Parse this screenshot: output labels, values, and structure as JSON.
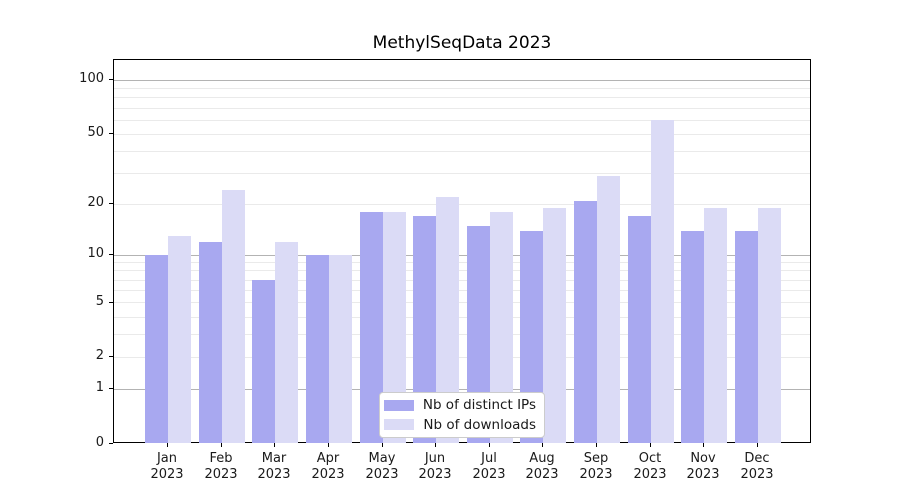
{
  "title": "MethylSeqData 2023",
  "legend": {
    "items": [
      {
        "label": "Nb of distinct IPs",
        "color": "#a8a8f0"
      },
      {
        "label": "Nb of downloads",
        "color": "#dbdbf6"
      }
    ]
  },
  "colors": {
    "bar_distinct_ips": "#a8a8f0",
    "bar_downloads": "#dbdbf6",
    "major_grid": "#b3b3b3",
    "minor_grid": "#eaeaea",
    "axis": "#000000",
    "background": "#ffffff",
    "legend_border": "#cccccc",
    "text": "#1a1a1a"
  },
  "chart_data": {
    "type": "bar",
    "title": "MethylSeqData 2023",
    "categories": [
      "Jan 2023",
      "Feb 2023",
      "Mar 2023",
      "Apr 2023",
      "May 2023",
      "Jun 2023",
      "Jul 2023",
      "Aug 2023",
      "Sep 2023",
      "Oct 2023",
      "Nov 2023",
      "Dec 2023"
    ],
    "series": [
      {
        "name": "Nb of distinct IPs",
        "color": "#a8a8f0",
        "values": [
          10,
          12,
          7,
          10,
          18,
          17,
          15,
          14,
          21,
          17,
          14,
          14
        ]
      },
      {
        "name": "Nb of downloads",
        "color": "#dbdbf6",
        "values": [
          13,
          24,
          12,
          10,
          18,
          22,
          18,
          19,
          29,
          60,
          19,
          19
        ]
      }
    ],
    "xlabel": "",
    "ylabel": "",
    "yscale": "log1p",
    "ylim": [
      0,
      130
    ],
    "yticks": [
      0,
      1,
      2,
      5,
      10,
      20,
      50,
      100
    ],
    "major_gridlines": [
      1,
      10,
      100
    ],
    "minor_gridlines": [
      2,
      3,
      4,
      5,
      6,
      7,
      8,
      9,
      20,
      30,
      40,
      50,
      60,
      70,
      80,
      90
    ],
    "grid": "horizontal",
    "legend_position": "lower center"
  }
}
